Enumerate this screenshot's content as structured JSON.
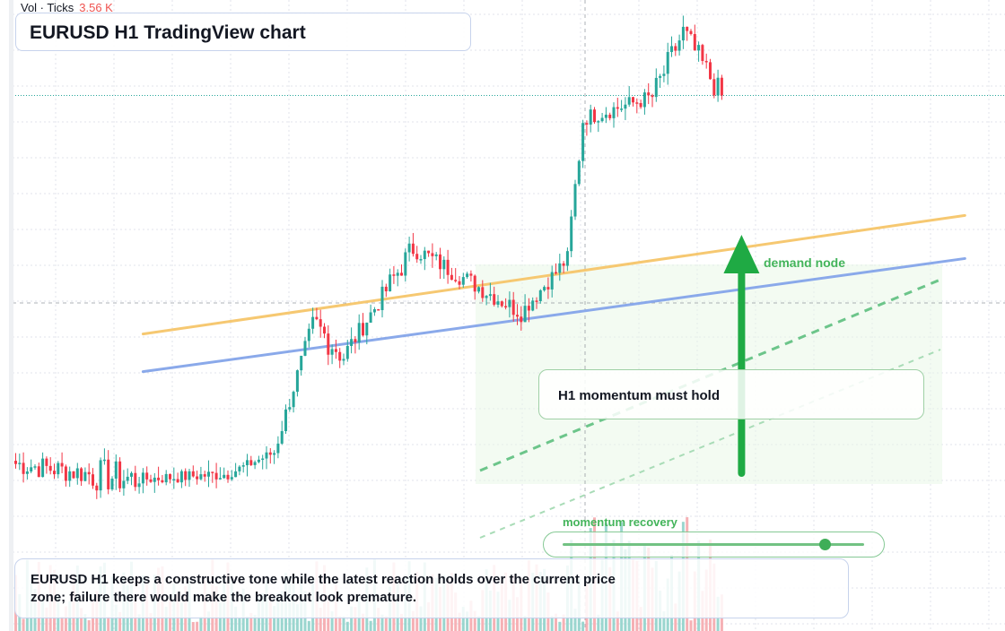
{
  "header": {
    "volume_label": "Vol · Ticks",
    "volume_value": "3.56 K",
    "title": "EURUSD H1 TradingView chart"
  },
  "annotations": {
    "callout_text": "H1 momentum must hold",
    "demand_label": "demand node",
    "recovery_label": "momentum recovery",
    "recovery_level": 0.87,
    "summary": "EURUSD H1 keeps a constructive tone while the latest reaction holds over the current price zone; failure there would make the breakout look premature."
  },
  "colors": {
    "up": "#26a69a",
    "down": "#f23645",
    "volume_up": "#89cfc7",
    "volume_down": "#f4a3a8",
    "resistance_line": "#f6c871",
    "trend_line": "#8aa9ea",
    "signal_green": "#1faa44",
    "dashed_green": "#6cc58a",
    "zone_fill": "#e9f7e7",
    "grid": "#e0e3eb"
  },
  "chart_data": {
    "type": "candlestick",
    "symbol": "EURUSD",
    "timeframe": "H1",
    "y_range": [
      0,
      100
    ],
    "seed": 7,
    "segments": [
      {
        "bars": 20,
        "start": 18,
        "end": 16,
        "noise": 2.2
      },
      {
        "bars": 12,
        "start": 16,
        "end": 15,
        "noise": 3.2
      },
      {
        "bars": 24,
        "start": 15,
        "end": 16,
        "noise": 1.2
      },
      {
        "bars": 12,
        "start": 16,
        "end": 20,
        "noise": 1.0
      },
      {
        "bars": 10,
        "start": 20,
        "end": 44,
        "noise": 1.6
      },
      {
        "bars": 8,
        "start": 44,
        "end": 38,
        "noise": 3.0
      },
      {
        "bars": 10,
        "start": 38,
        "end": 49,
        "noise": 1.8
      },
      {
        "bars": 8,
        "start": 49,
        "end": 58,
        "noise": 2.4
      },
      {
        "bars": 28,
        "start": 58,
        "end": 46,
        "noise": 1.8
      },
      {
        "bars": 12,
        "start": 46,
        "end": 56,
        "noise": 1.6
      },
      {
        "bars": 4,
        "start": 56,
        "end": 82,
        "noise": 3.0
      },
      {
        "bars": 18,
        "start": 82,
        "end": 86,
        "noise": 1.6
      },
      {
        "bars": 8,
        "start": 86,
        "end": 98,
        "noise": 2.5
      },
      {
        "bars": 10,
        "start": 98,
        "end": 86,
        "noise": 2.5
      }
    ],
    "resistance_line": [
      [
        0,
        42
      ],
      [
        248,
        70
      ]
    ],
    "trend_line": [
      [
        0,
        35
      ],
      [
        248,
        63
      ]
    ],
    "signal_bar_index": 188
  }
}
